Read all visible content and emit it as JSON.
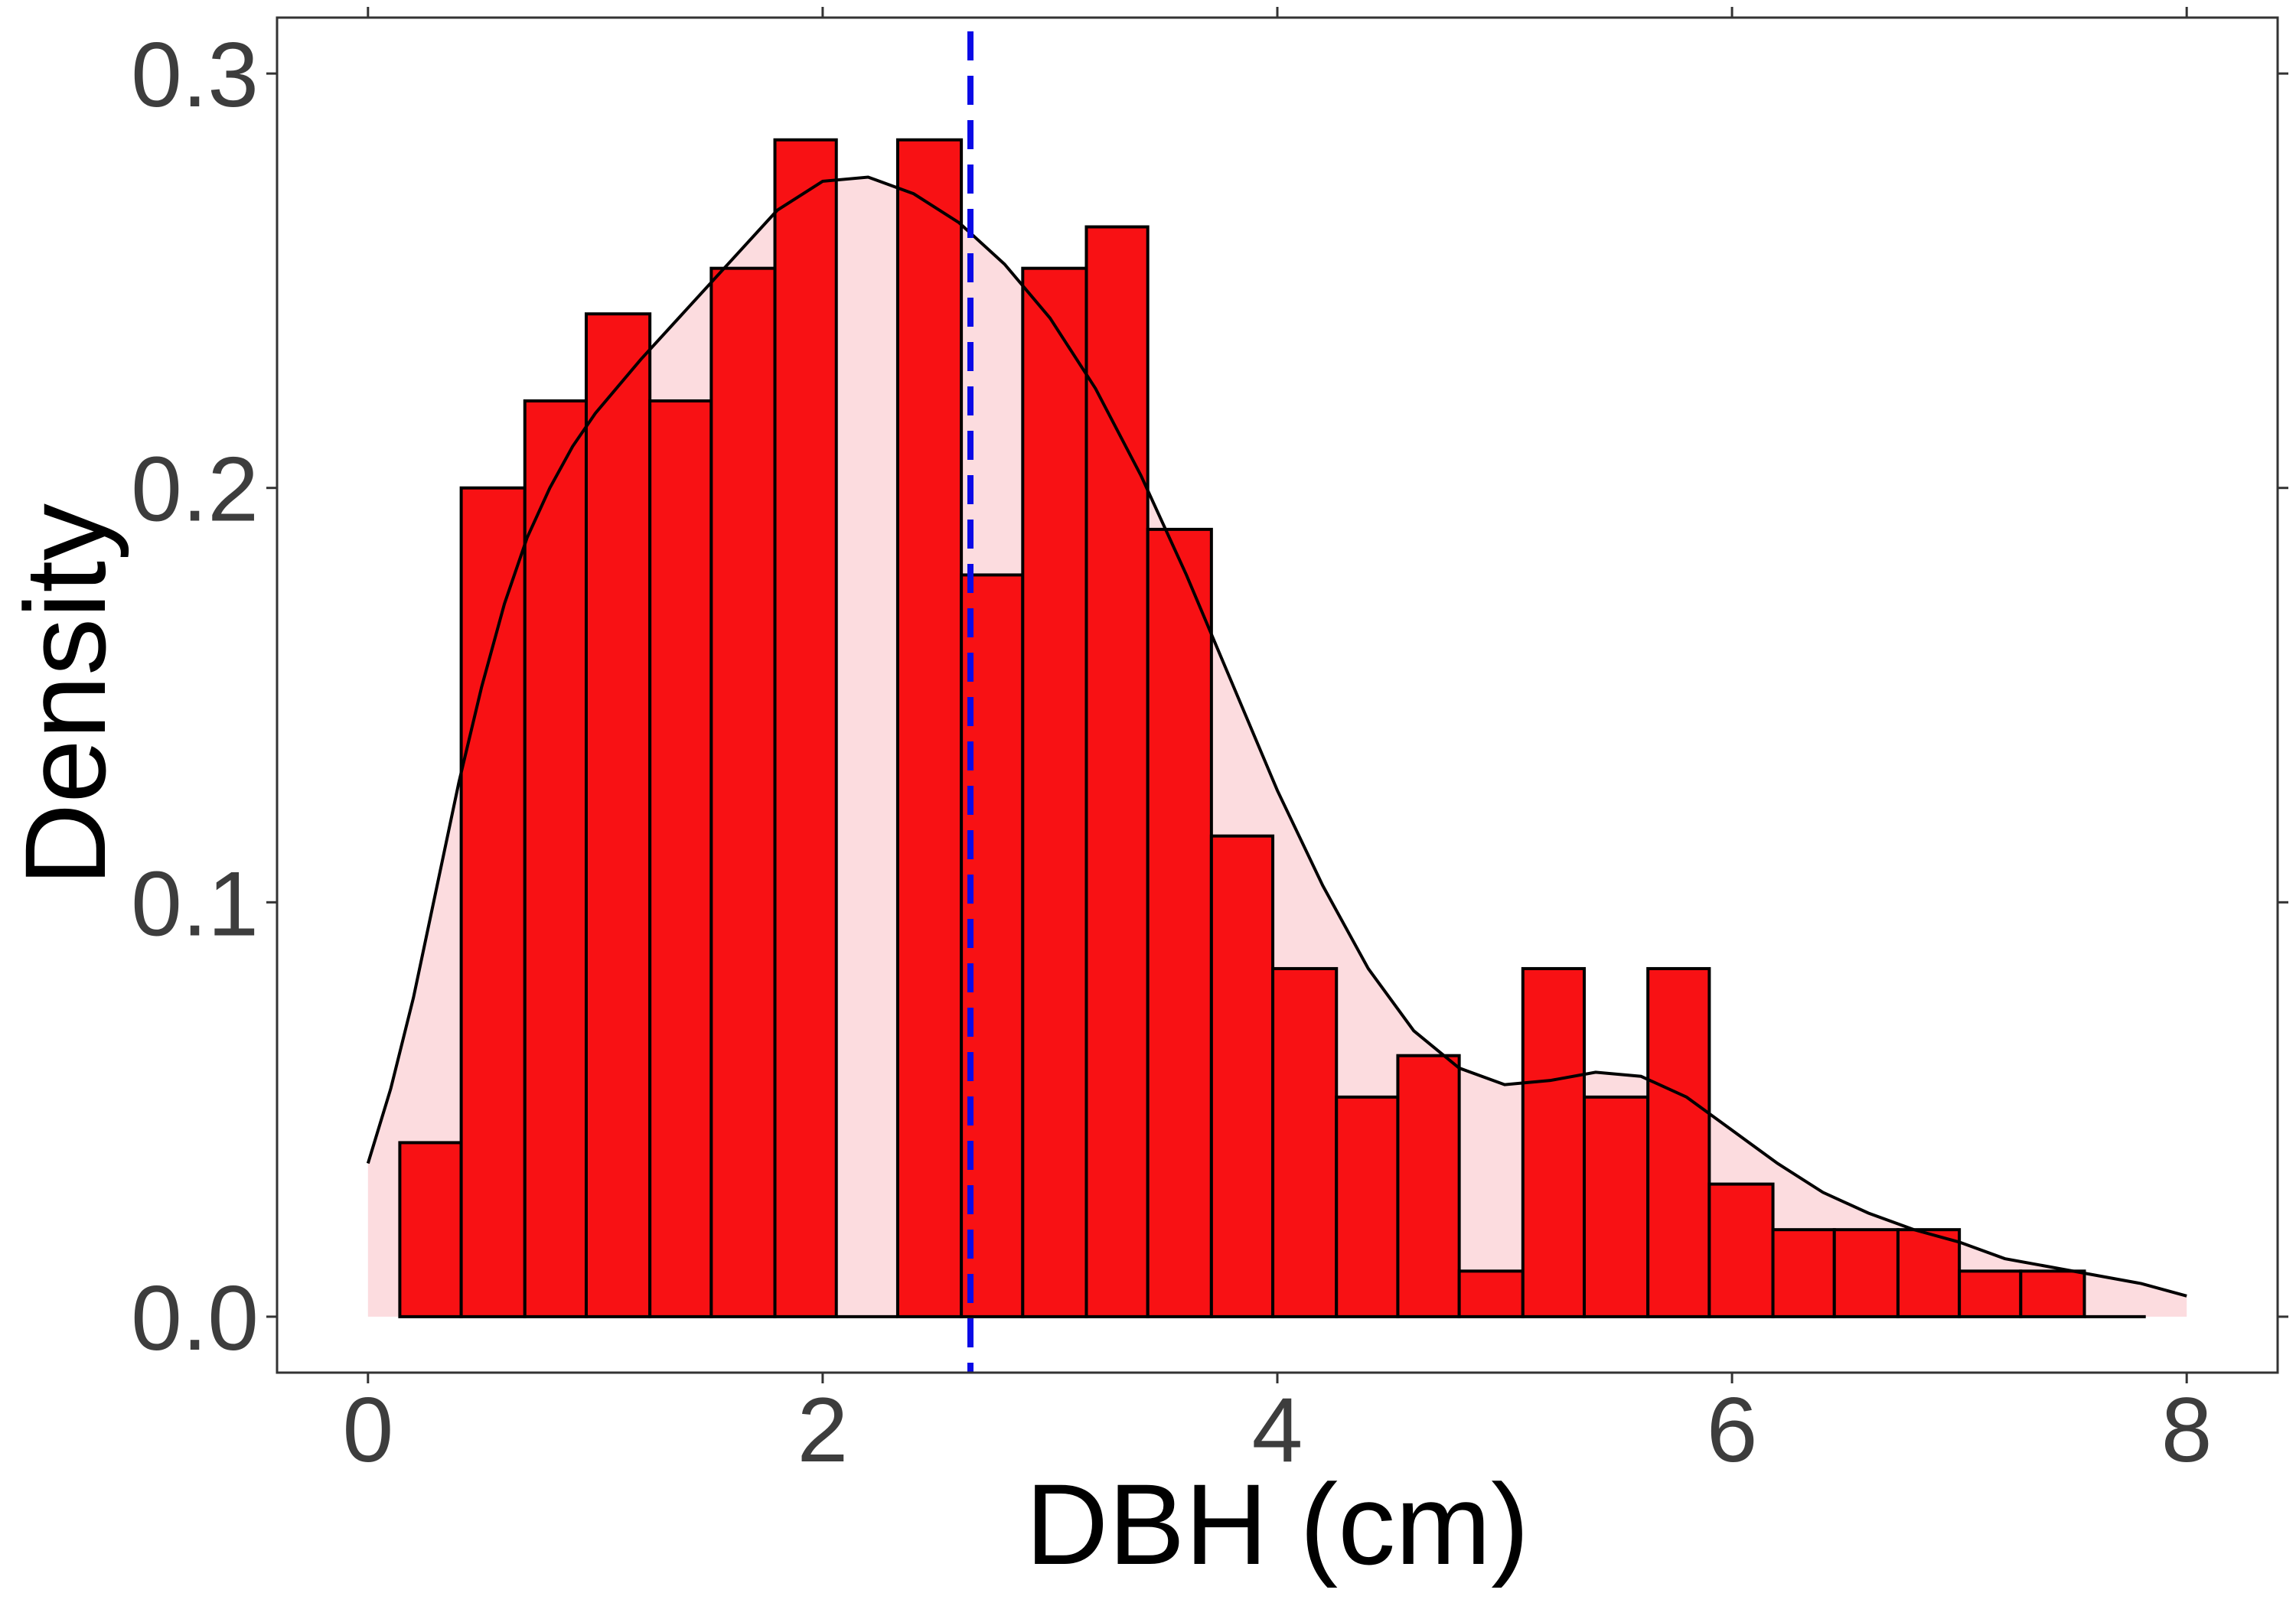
{
  "chart_data": {
    "type": "histogram",
    "title": "",
    "xlabel": "DBH (cm)",
    "ylabel": "Density",
    "xlim": [
      -0.4,
      8.4
    ],
    "ylim": [
      -0.0135,
      0.3135
    ],
    "x_ticks": [
      0,
      2,
      4,
      6,
      8
    ],
    "x_tick_labels": [
      "0",
      "2",
      "4",
      "6",
      "8"
    ],
    "y_ticks": [
      0.0,
      0.1,
      0.2,
      0.3
    ],
    "y_tick_labels": [
      "0.0",
      "0.1",
      "0.2",
      "0.3"
    ],
    "grid": false,
    "legend": "none",
    "bar_fill_color": "#f81114",
    "bar_outline_color": "#000000",
    "density_fill_color": "#fcdcdf",
    "density_line_color": "#000000",
    "mean_line_color": "#0a0ae6",
    "mean_line_style": "dashed",
    "mean_x": 2.65,
    "bins": [
      {
        "x0": 0.14,
        "x1": 0.41,
        "density": 0.042
      },
      {
        "x0": 0.41,
        "x1": 0.69,
        "density": 0.2
      },
      {
        "x0": 0.69,
        "x1": 0.96,
        "density": 0.221
      },
      {
        "x0": 0.96,
        "x1": 1.24,
        "density": 0.242
      },
      {
        "x0": 1.24,
        "x1": 1.51,
        "density": 0.221
      },
      {
        "x0": 1.51,
        "x1": 1.79,
        "density": 0.253
      },
      {
        "x0": 1.79,
        "x1": 2.06,
        "density": 0.284
      },
      {
        "x0": 2.06,
        "x1": 2.33,
        "density": 0.0
      },
      {
        "x0": 2.33,
        "x1": 2.61,
        "density": 0.284
      },
      {
        "x0": 2.61,
        "x1": 2.88,
        "density": 0.179
      },
      {
        "x0": 2.88,
        "x1": 3.16,
        "density": 0.253
      },
      {
        "x0": 3.16,
        "x1": 3.43,
        "density": 0.263
      },
      {
        "x0": 3.43,
        "x1": 3.71,
        "density": 0.19
      },
      {
        "x0": 3.71,
        "x1": 3.98,
        "density": 0.116
      },
      {
        "x0": 3.98,
        "x1": 4.26,
        "density": 0.084
      },
      {
        "x0": 4.26,
        "x1": 4.53,
        "density": 0.053
      },
      {
        "x0": 4.53,
        "x1": 4.8,
        "density": 0.063
      },
      {
        "x0": 4.8,
        "x1": 5.08,
        "density": 0.011
      },
      {
        "x0": 5.08,
        "x1": 5.35,
        "density": 0.084
      },
      {
        "x0": 5.35,
        "x1": 5.63,
        "density": 0.053
      },
      {
        "x0": 5.63,
        "x1": 5.9,
        "density": 0.084
      },
      {
        "x0": 5.9,
        "x1": 6.18,
        "density": 0.032
      },
      {
        "x0": 6.18,
        "x1": 6.45,
        "density": 0.021
      },
      {
        "x0": 6.45,
        "x1": 6.73,
        "density": 0.021
      },
      {
        "x0": 6.73,
        "x1": 7.0,
        "density": 0.021
      },
      {
        "x0": 7.0,
        "x1": 7.27,
        "density": 0.011
      },
      {
        "x0": 7.27,
        "x1": 7.55,
        "density": 0.011
      },
      {
        "x0": 7.55,
        "x1": 7.82,
        "density": 0.0
      }
    ],
    "density_curve": {
      "x": [
        0.0,
        0.1,
        0.2,
        0.3,
        0.4,
        0.5,
        0.6,
        0.7,
        0.8,
        0.9,
        1.0,
        1.2,
        1.4,
        1.6,
        1.8,
        2.0,
        2.2,
        2.4,
        2.6,
        2.8,
        3.0,
        3.2,
        3.4,
        3.6,
        3.8,
        4.0,
        4.2,
        4.4,
        4.6,
        4.8,
        5.0,
        5.2,
        5.4,
        5.6,
        5.8,
        6.0,
        6.2,
        6.4,
        6.6,
        6.8,
        7.0,
        7.2,
        7.4,
        7.6,
        7.8,
        8.0
      ],
      "y": [
        0.037,
        0.055,
        0.077,
        0.103,
        0.129,
        0.152,
        0.172,
        0.188,
        0.2,
        0.21,
        0.218,
        0.231,
        0.243,
        0.255,
        0.267,
        0.274,
        0.275,
        0.271,
        0.264,
        0.254,
        0.241,
        0.224,
        0.203,
        0.179,
        0.153,
        0.127,
        0.104,
        0.084,
        0.069,
        0.06,
        0.056,
        0.057,
        0.059,
        0.058,
        0.053,
        0.045,
        0.037,
        0.03,
        0.025,
        0.021,
        0.018,
        0.014,
        0.012,
        0.01,
        0.008,
        0.005
      ]
    }
  }
}
